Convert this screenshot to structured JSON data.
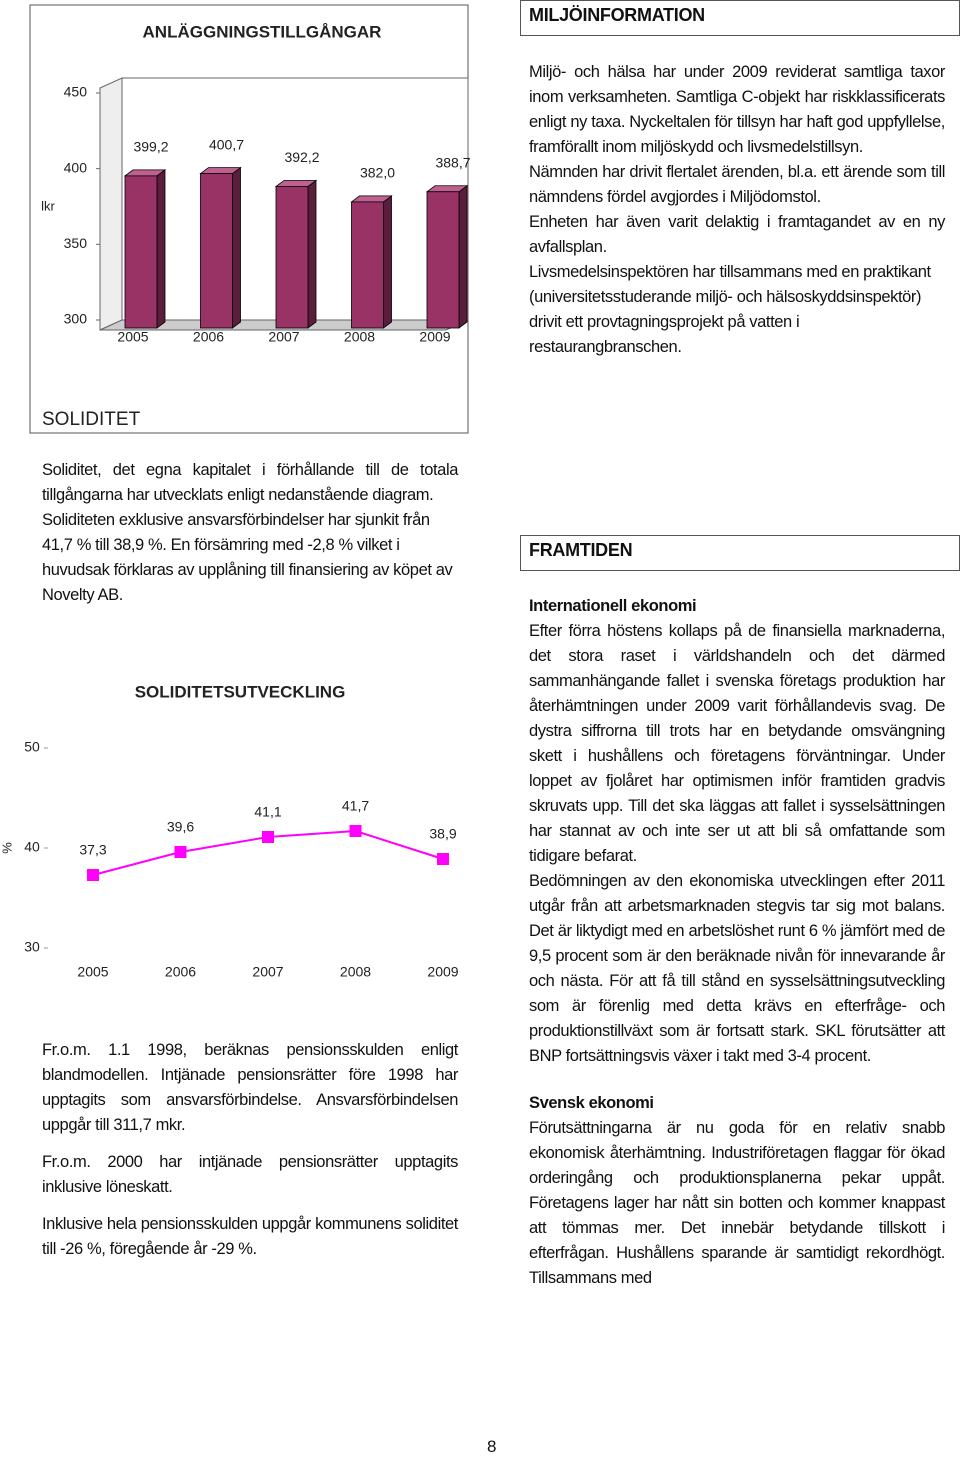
{
  "chart_data": [
    {
      "type": "bar",
      "title": "ANLÄGGNINGSTILLGÅNGAR",
      "y_label": "lkr",
      "categories": [
        "2005",
        "2006",
        "2007",
        "2008",
        "2009"
      ],
      "values": [
        399.2,
        400.7,
        392.2,
        382.0,
        388.7
      ],
      "value_labels": [
        "399,2",
        "400,7",
        "392,2",
        "382,0",
        "388,7"
      ],
      "color": "#993366",
      "ylim": [
        300,
        450
      ],
      "yticks": [
        300,
        350,
        400,
        450
      ]
    },
    {
      "type": "line",
      "title": "SOLIDITETSUTVECKLING",
      "y_label": "%",
      "categories": [
        "2005",
        "2006",
        "2007",
        "2008",
        "2009"
      ],
      "values": [
        37.3,
        39.6,
        41.1,
        41.7,
        38.9
      ],
      "value_labels": [
        "37,3",
        "39,6",
        "41,1",
        "41,7",
        "38,9"
      ],
      "color": "#ff00ff",
      "ylim": [
        30,
        50
      ],
      "yticks": [
        30,
        40,
        50
      ]
    }
  ],
  "soliditet": {
    "heading": "SOLIDITET",
    "paragraphs": [
      "Soliditet, det egna kapitalet i förhållande till de totala tillgångarna har utvecklats enligt nedanstående diagram.",
      "Soliditeten exklusive ansvarsförbindelser har sjunkit från 41,7 % till 38,9 %. En försämring med -2,8 % vilket i huvudsak förklaras av upplåning till finansiering av köpet av Novelty AB."
    ],
    "notes": [
      "Fr.o.m. 1.1 1998, beräknas pensionsskulden enligt blandmodellen. Intjänade pensionsrätter före 1998 har upptagits som ansvarsförbindelse. Ansvarsförbindelsen uppgår till 311,7 mkr.",
      "Fr.o.m. 2000 har intjänade pensionsrätter upptagits inklusive löneskatt.",
      "Inklusive hela pensionsskulden uppgår kommunens soliditet till -26 %, föregående år -29 %."
    ]
  },
  "miljo": {
    "heading": "MILJÖINFORMATION",
    "paragraphs": [
      "Miljö- och hälsa har under 2009 reviderat samtliga taxor inom verksamheten. Samtliga C-objekt har riskklassificerats enligt ny taxa. Nyckeltalen för tillsyn har haft god uppfyllelse, framförallt inom miljöskydd och livsmedelstillsyn.",
      "Nämnden har drivit flertalet ärenden, bl.a. ett ärende som till nämndens fördel avgjordes i Miljödomstol.",
      "Enheten har även varit delaktig i framtagandet av en ny avfallsplan.",
      "Livsmedelsinspektören har tillsammans med en praktikant (universitetsstuderande miljö- och hälsoskyddsinspektör) drivit ett provtagningsprojekt på vatten i restaurangbranschen."
    ]
  },
  "framtiden": {
    "heading": "FRAMTIDEN",
    "sections": [
      {
        "heading": "Internationell ekonomi",
        "paragraphs": [
          "Efter förra höstens kollaps på de finansiella marknaderna, det stora raset i världshandeln och det därmed sammanhängande fallet i svenska företags produktion har återhämtningen under 2009 varit förhållandevis svag. De dystra siffrorna till trots har en betydande omsvängning skett i hushållens och företagens förväntningar. Under loppet av fjolåret har optimismen inför framtiden gradvis skruvats upp. Till det ska läggas att fallet i sysselsättningen har stannat av och inte ser ut att bli så omfattande som tidigare befarat.",
          "Bedömningen av den ekonomiska utvecklingen efter 2011 utgår från att arbetsmarknaden stegvis tar sig mot balans. Det är liktydigt med en arbetslöshet runt 6 % jämfört med de 9,5 procent som är den beräknade nivån för innevarande år och nästa. För att få till stånd en sysselsättningsutveckling som är förenlig med detta krävs en efterfråge- och produktionstillväxt som är fortsatt stark. SKL förutsätter att BNP fortsättningsvis växer i takt med 3-4 procent."
        ]
      },
      {
        "heading": "Svensk ekonomi",
        "paragraphs": [
          "Förutsättningarna är nu goda för en relativ snabb ekonomisk återhämtning. Industriföretagen flaggar för ökad orderingång och produktionsplanerna pekar uppåt. Företagens lager har nått sin botten och kommer knappast att tömmas mer. Det innebär betydande tillskott i efterfrågan. Hushållens sparande är samtidigt rekordhögt. Tillsammans med"
        ]
      }
    ]
  },
  "page_number": "8"
}
